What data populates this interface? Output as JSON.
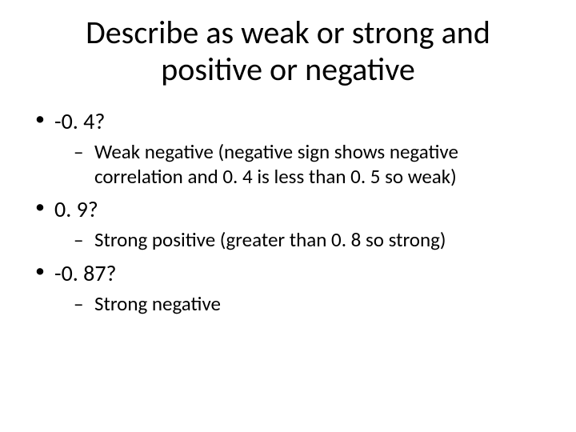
{
  "slide": {
    "title": "Describe as weak or strong and positive or negative",
    "title_fontsize": 40,
    "body_fontsize_level1": 28,
    "body_fontsize_level2": 25,
    "background_color": "#ffffff",
    "text_color": "#000000",
    "font_family": "Calibri",
    "bullets": [
      {
        "level": 1,
        "text": "-0. 4?"
      },
      {
        "level": 2,
        "text": "Weak negative (negative sign shows negative correlation and 0. 4 is less than 0. 5 so weak)"
      },
      {
        "level": 1,
        "text": "0. 9?"
      },
      {
        "level": 2,
        "text": "Strong positive (greater than 0. 8 so strong)"
      },
      {
        "level": 1,
        "text": "-0. 87?"
      },
      {
        "level": 2,
        "text": "Strong negative"
      }
    ]
  }
}
